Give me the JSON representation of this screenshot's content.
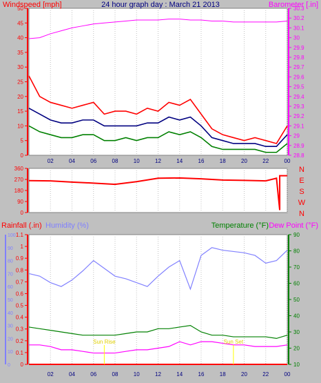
{
  "chart_data": [
    {
      "type": "line",
      "title": "24 hour graph day : March 21 2013",
      "ylabel": "Windspeed [mph]",
      "y2label": "Barometer [.in]",
      "x_ticks": [
        "02",
        "04",
        "06",
        "08",
        "10",
        "12",
        "14",
        "16",
        "18",
        "20",
        "22",
        "00"
      ],
      "ylim": [
        0,
        50
      ],
      "y_ticks": [
        0,
        5,
        10,
        15,
        20,
        25,
        30,
        35,
        40,
        45,
        50
      ],
      "y2lim": [
        28.8,
        30.3
      ],
      "y2_ticks": [
        28.8,
        28.9,
        29.0,
        29.1,
        29.2,
        29.3,
        29.4,
        29.5,
        29.6,
        29.7,
        29.8,
        29.9,
        30.0,
        30.1,
        30.2,
        30.3
      ],
      "y2_tick_labels": [
        "28.8",
        "28.9",
        "29",
        "29.1",
        "29.2",
        "29.3",
        "29.4",
        "29.5",
        "29.6",
        "29.7",
        "29.8",
        "29.9",
        "30",
        "30.1",
        "30.2",
        "30.3"
      ],
      "x_hours": [
        0,
        1,
        2,
        3,
        4,
        5,
        6,
        7,
        8,
        9,
        10,
        11,
        12,
        13,
        14,
        15,
        16,
        17,
        18,
        19,
        20,
        21,
        22,
        23,
        24
      ],
      "series": [
        {
          "role": "gust",
          "axis": "left",
          "color": "#ff0000",
          "values": [
            27,
            20,
            18,
            17,
            16,
            17,
            18,
            14,
            15,
            15,
            14,
            16,
            15,
            18,
            17,
            19,
            14,
            9,
            7,
            6,
            5,
            6,
            5,
            4,
            10
          ]
        },
        {
          "role": "speed",
          "axis": "left",
          "color": "#000080",
          "values": [
            16,
            14,
            12,
            11,
            11,
            12,
            12,
            10,
            10,
            10,
            10,
            11,
            11,
            13,
            12,
            13,
            10,
            6,
            5,
            4,
            4,
            4,
            3,
            3,
            7
          ]
        },
        {
          "role": "direction",
          "axis": "left",
          "color": "#008000",
          "values": [
            10,
            8,
            7,
            6,
            6,
            7,
            7,
            5,
            5,
            6,
            5,
            6,
            6,
            8,
            7,
            8,
            6,
            3,
            2,
            2,
            2,
            2,
            1,
            1,
            4
          ]
        },
        {
          "role": "barometer",
          "axis": "right",
          "color": "#ff00ff",
          "values": [
            29.99,
            30.0,
            30.04,
            30.07,
            30.1,
            30.12,
            30.14,
            30.15,
            30.16,
            30.17,
            30.18,
            30.18,
            30.18,
            30.19,
            30.19,
            30.18,
            30.18,
            30.17,
            30.17,
            30.16,
            30.16,
            30.16,
            30.16,
            30.16,
            30.17
          ]
        }
      ]
    },
    {
      "type": "line",
      "y_ticks": [
        0,
        90,
        180,
        270,
        360
      ],
      "ylim": [
        0,
        360
      ],
      "direction_labels": [
        "N",
        "W",
        "S",
        "E",
        "N"
      ],
      "x_hours": [
        0,
        2,
        4,
        6,
        8,
        10,
        12,
        14,
        16,
        18,
        20,
        22,
        23,
        23.3,
        23.3,
        24
      ],
      "series": [
        {
          "role": "wind-direction",
          "color": "#ff0000",
          "values": [
            260,
            258,
            248,
            240,
            230,
            252,
            280,
            282,
            275,
            265,
            262,
            258,
            280,
            20,
            300,
            300
          ]
        }
      ]
    },
    {
      "type": "line",
      "ylabel": "Rainfall (.in)",
      "ylabel2": "Humidity (%)",
      "y2label": "Temperature (°F)",
      "y2label2": "Dew Point (°F)",
      "x_ticks": [
        "02",
        "04",
        "06",
        "08",
        "10",
        "12",
        "14",
        "16",
        "18",
        "20",
        "22",
        "00"
      ],
      "rain_ylim": [
        0,
        1.1
      ],
      "rain_ticks": [
        0,
        0.1,
        0.2,
        0.3,
        0.4,
        0.5,
        0.6,
        0.7,
        0.8,
        0.9,
        1.0,
        1.1
      ],
      "rain_tick_labels": [
        "0",
        "0.1",
        "0.2",
        "0.3",
        "0.4",
        "0.5",
        "0.6",
        "0.7",
        "0.8",
        "0.9",
        "1",
        "1.1"
      ],
      "hum_ylim": [
        0,
        100
      ],
      "hum_ticks": [
        0,
        10,
        20,
        30,
        40,
        50,
        60,
        70,
        80,
        90,
        100
      ],
      "temp_ylim": [
        10,
        90
      ],
      "temp_ticks": [
        10,
        20,
        30,
        40,
        50,
        60,
        70,
        80,
        90
      ],
      "annotations": [
        {
          "text": "Sun Rise",
          "hour": 7.0
        },
        {
          "text": "Sun Set",
          "hour": 19.0
        }
      ],
      "x_hours": [
        0,
        1,
        2,
        3,
        4,
        5,
        6,
        7,
        8,
        9,
        10,
        11,
        12,
        13,
        14,
        15,
        16,
        17,
        18,
        19,
        20,
        21,
        22,
        23,
        24
      ],
      "series": [
        {
          "role": "humidity",
          "axis": "hum",
          "color": "#8080ff",
          "values": [
            70,
            68,
            63,
            60,
            65,
            72,
            80,
            74,
            68,
            66,
            63,
            60,
            68,
            75,
            80,
            58,
            84,
            90,
            88,
            87,
            86,
            84,
            78,
            80,
            88
          ]
        },
        {
          "role": "temperature",
          "axis": "temp",
          "color": "#008000",
          "values": [
            33,
            32,
            31,
            30,
            29,
            28,
            28,
            28,
            28,
            29,
            30,
            30,
            32,
            32,
            33,
            34,
            30,
            28,
            28,
            27,
            27,
            27,
            27,
            26,
            28
          ]
        },
        {
          "role": "dewpoint",
          "axis": "temp",
          "color": "#ff00ff",
          "values": [
            22,
            22,
            21,
            19,
            19,
            18,
            17,
            17,
            17,
            18,
            19,
            19,
            20,
            21,
            24,
            22,
            24,
            24,
            23,
            22,
            22,
            21,
            21,
            21,
            22
          ]
        },
        {
          "role": "rainfall",
          "axis": "rain",
          "color": "#ff0000",
          "values": [
            0,
            0,
            0,
            0,
            0,
            0,
            0,
            0,
            0,
            0,
            0,
            0,
            0,
            0,
            0,
            0,
            0,
            0,
            0,
            0,
            0,
            0,
            0,
            0,
            0
          ]
        }
      ]
    }
  ]
}
